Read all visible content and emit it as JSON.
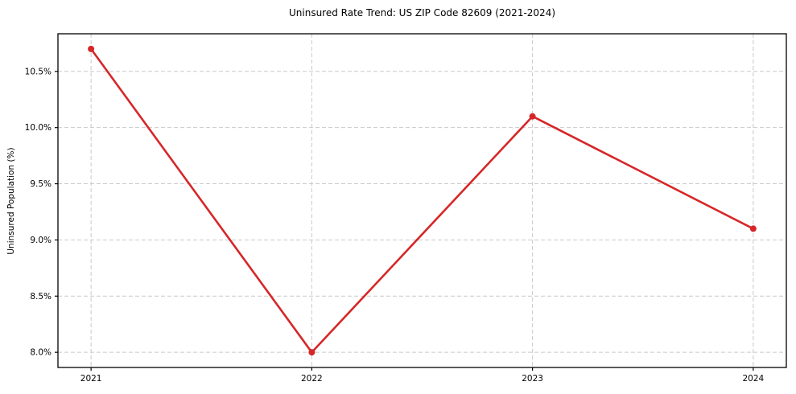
{
  "chart_data": {
    "type": "line",
    "title": "Uninsured Rate Trend: US ZIP Code 82609 (2021-2024)",
    "xlabel": "",
    "ylabel": "Uninsured Population (%)",
    "x": [
      2021,
      2022,
      2023,
      2024
    ],
    "x_tick_labels": [
      "2021",
      "2022",
      "2023",
      "2024"
    ],
    "series": [
      {
        "name": "Uninsured Population (%)",
        "values": [
          10.7,
          8.0,
          10.1,
          9.1
        ]
      }
    ],
    "y_ticks": [
      8.0,
      8.5,
      9.0,
      9.5,
      10.0,
      10.5
    ],
    "y_tick_labels": [
      "8.0%",
      "8.5%",
      "9.0%",
      "9.5%",
      "10.0%",
      "10.5%"
    ],
    "ylim": [
      7.865,
      10.835
    ],
    "xlim": [
      2020.85,
      2024.15
    ],
    "grid": true,
    "grid_style": "dashed",
    "grid_color": "#c9c9c9",
    "line_color": "#d62728",
    "marker": "circle",
    "marker_size": 4,
    "line_width": 2.6,
    "spine_color": "#000000",
    "background": "#ffffff",
    "legend": "none"
  }
}
